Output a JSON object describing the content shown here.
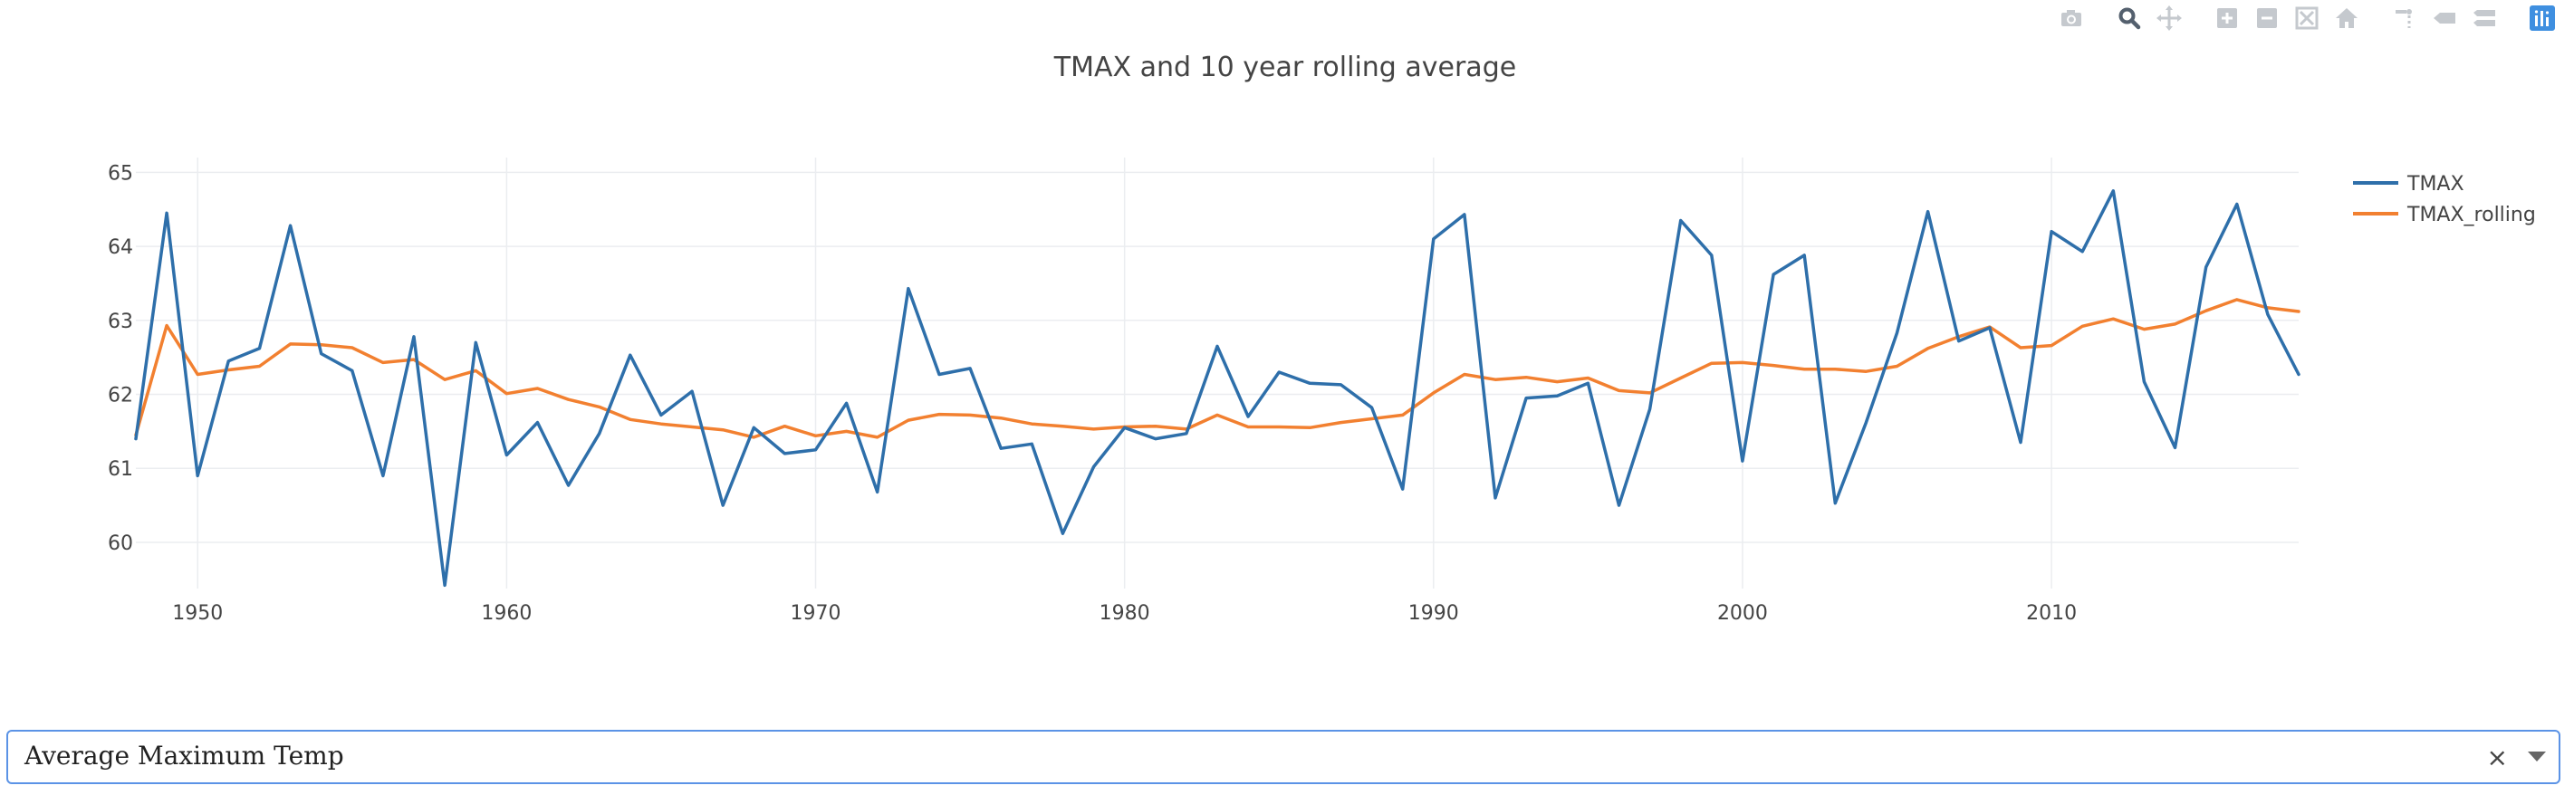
{
  "chart_data": {
    "type": "line",
    "title": "TMAX and 10 year rolling average",
    "xlim": [
      1948,
      2018
    ],
    "ylim": [
      59.4,
      65.2
    ],
    "x_ticks": [
      1950,
      1960,
      1970,
      1980,
      1990,
      2000,
      2010
    ],
    "y_ticks": [
      60,
      61,
      62,
      63,
      64,
      65
    ],
    "grid": true,
    "legend_position": "top-right",
    "x": [
      1948,
      1949,
      1950,
      1951,
      1952,
      1953,
      1954,
      1955,
      1956,
      1957,
      1958,
      1959,
      1960,
      1961,
      1962,
      1963,
      1964,
      1965,
      1966,
      1967,
      1968,
      1969,
      1970,
      1971,
      1972,
      1973,
      1974,
      1975,
      1976,
      1977,
      1978,
      1979,
      1980,
      1981,
      1982,
      1983,
      1984,
      1985,
      1986,
      1987,
      1988,
      1989,
      1990,
      1991,
      1992,
      1993,
      1994,
      1995,
      1996,
      1997,
      1998,
      1999,
      2000,
      2001,
      2002,
      2003,
      2004,
      2005,
      2006,
      2007,
      2008,
      2009,
      2010,
      2011,
      2012,
      2013,
      2014,
      2015,
      2016,
      2017,
      2018
    ],
    "series": [
      {
        "name": "TMAX",
        "color": "#2e6faa",
        "values": [
          61.4,
          64.45,
          60.9,
          62.45,
          62.62,
          64.28,
          62.55,
          62.32,
          60.9,
          62.78,
          59.42,
          62.7,
          61.18,
          61.62,
          60.77,
          61.47,
          62.53,
          61.72,
          62.04,
          60.5,
          61.55,
          61.2,
          61.25,
          61.88,
          60.68,
          63.43,
          62.27,
          62.35,
          61.27,
          61.33,
          60.12,
          61.02,
          61.55,
          61.4,
          61.47,
          62.65,
          61.7,
          62.3,
          62.15,
          62.13,
          61.82,
          60.72,
          64.1,
          64.43,
          60.6,
          61.95,
          61.98,
          62.15,
          60.5,
          61.8,
          64.35,
          63.88,
          61.1,
          63.62,
          63.88,
          60.53,
          61.62,
          62.83,
          64.47,
          62.72,
          62.9,
          61.35,
          64.2,
          63.93,
          64.75,
          62.17,
          61.28,
          63.72,
          64.57,
          63.08,
          62.27
        ]
      },
      {
        "name": "TMAX_rolling",
        "color": "#f28030",
        "values": [
          61.45,
          62.93,
          62.27,
          62.33,
          62.38,
          62.68,
          62.67,
          62.63,
          62.43,
          62.47,
          62.2,
          62.32,
          62.01,
          62.08,
          61.93,
          61.83,
          61.66,
          61.6,
          61.56,
          61.52,
          61.42,
          61.57,
          61.44,
          61.5,
          61.42,
          61.65,
          61.73,
          61.72,
          61.68,
          61.6,
          61.57,
          61.53,
          61.56,
          61.57,
          61.53,
          61.72,
          61.56,
          61.56,
          61.55,
          61.62,
          61.67,
          61.72,
          62.02,
          62.27,
          62.2,
          62.23,
          62.17,
          62.22,
          62.05,
          62.02,
          62.22,
          62.42,
          62.43,
          62.39,
          62.34,
          62.34,
          62.31,
          62.38,
          62.62,
          62.78,
          62.91,
          62.63,
          62.66,
          62.92,
          63.02,
          62.88,
          62.95,
          63.13,
          63.28,
          63.17,
          63.12
        ]
      }
    ]
  },
  "modebar": {
    "buttons": [
      "camera-icon",
      "zoom-icon",
      "pan-icon",
      "zoom-in-icon",
      "zoom-out-icon",
      "autoscale-icon",
      "home-icon",
      "spike-lines-icon",
      "hover-closest-icon",
      "hover-compare-icon",
      "plotly-logo-icon"
    ]
  },
  "dropdown": {
    "value": "Average Maximum Temp",
    "clear_symbol": "×"
  }
}
